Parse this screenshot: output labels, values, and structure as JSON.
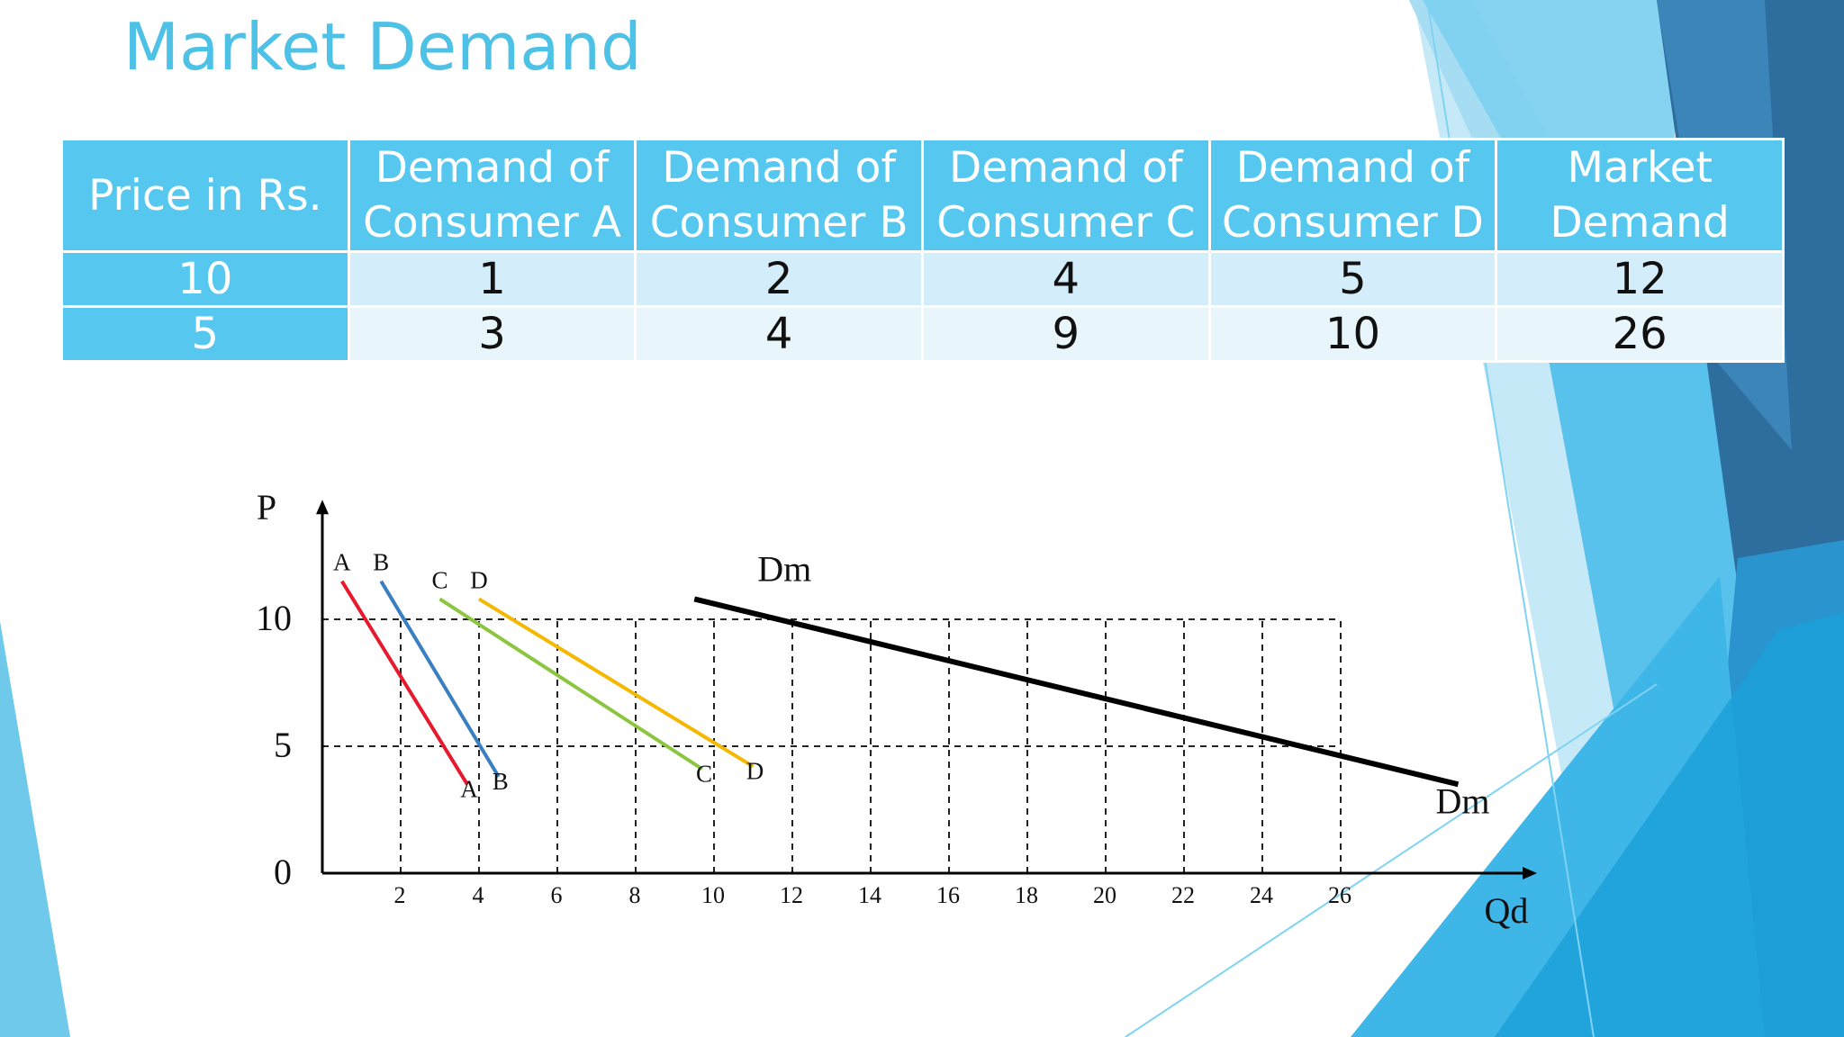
{
  "slide": {
    "title": "Market Demand",
    "colors": {
      "title": "#4ec1e6",
      "header_bg": "#56c8ef",
      "row1_bg": "#d4edfa",
      "row2_bg": "#e8f6fc"
    }
  },
  "table": {
    "headers": [
      "Price in Rs.",
      "Demand of Consumer A",
      "Demand of Consumer B",
      "Demand of Consumer C",
      "Demand of Consumer D",
      "Market Demand"
    ],
    "rows": [
      [
        "10",
        "1",
        "2",
        "4",
        "5",
        "12"
      ],
      [
        "5",
        "3",
        "4",
        "9",
        "10",
        "26"
      ]
    ]
  },
  "chart_data": {
    "type": "line",
    "xlabel": "Qd",
    "ylabel": "P",
    "x_ticks": [
      "2",
      "4",
      "6",
      "8",
      "10",
      "12",
      "14",
      "16",
      "18",
      "20",
      "22",
      "24",
      "26"
    ],
    "y_ticks": [
      "0",
      "5",
      "10"
    ],
    "xlim": [
      0,
      30
    ],
    "ylim": [
      0,
      14
    ],
    "grid": "dashed guides at P=5 and P=10 and at each Qd tick",
    "series": [
      {
        "name": "A",
        "start_label": "A",
        "end_label": "A",
        "color": "#e8192c",
        "points": [
          [
            0.5,
            11.5
          ],
          [
            3.7,
            3.5
          ]
        ]
      },
      {
        "name": "B",
        "start_label": "B",
        "end_label": "B",
        "color": "#3a7fc1",
        "points": [
          [
            1.5,
            11.5
          ],
          [
            4.5,
            3.8
          ]
        ]
      },
      {
        "name": "C",
        "start_label": "C",
        "end_label": "C",
        "color": "#8cc640",
        "points": [
          [
            3.0,
            10.8
          ],
          [
            9.7,
            4.1
          ]
        ]
      },
      {
        "name": "D",
        "start_label": "D",
        "end_label": "D",
        "color": "#f5b800",
        "points": [
          [
            4.0,
            10.8
          ],
          [
            11.0,
            4.2
          ]
        ]
      },
      {
        "name": "Dm",
        "start_label": "Dm",
        "end_label": "Dm",
        "color": "#000000",
        "points": [
          [
            9.5,
            10.8
          ],
          [
            29.0,
            3.5
          ]
        ]
      }
    ]
  }
}
